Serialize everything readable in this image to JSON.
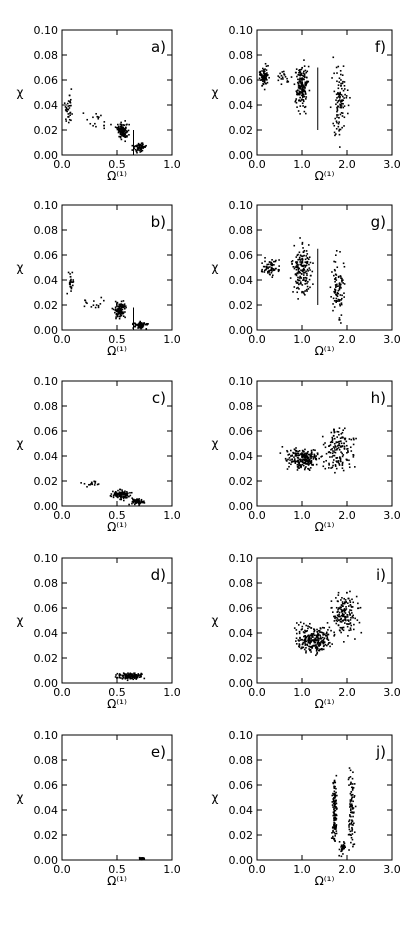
{
  "chart_data": [
    {
      "id": "a",
      "type": "scatter",
      "panel_label": "a)",
      "xlabel": "Ω⁽¹⁾",
      "ylabel": "χ",
      "xlim": [
        0,
        1
      ],
      "ylim": [
        0,
        0.1
      ],
      "x_ticks": [
        "0.0",
        "0.5",
        "1.0"
      ],
      "y_ticks": [
        "0.00",
        "0.02",
        "0.04",
        "0.06",
        "0.08",
        "0.10"
      ],
      "clusters": [
        {
          "x": [
            0.02,
            0.1
          ],
          "y": [
            0.02,
            0.055
          ],
          "n": 35
        },
        {
          "x": [
            0.48,
            0.62
          ],
          "y": [
            0.01,
            0.028
          ],
          "n": 120
        },
        {
          "x": [
            0.62,
            0.78
          ],
          "y": [
            0.0,
            0.012
          ],
          "n": 60
        },
        {
          "x": [
            0.1,
            0.55
          ],
          "y": [
            0.015,
            0.04
          ],
          "n": 18
        }
      ],
      "lines": [
        {
          "x": 0.65,
          "y": [
            0.0,
            0.02
          ]
        }
      ]
    },
    {
      "id": "b",
      "type": "scatter",
      "panel_label": "b)",
      "xlabel": "Ω⁽¹⁾",
      "ylabel": "χ",
      "xlim": [
        0,
        1
      ],
      "ylim": [
        0,
        0.1
      ],
      "x_ticks": [
        "0.0",
        "0.5",
        "1.0"
      ],
      "y_ticks": [
        "0.00",
        "0.02",
        "0.04",
        "0.06",
        "0.08",
        "0.10"
      ],
      "clusters": [
        {
          "x": [
            0.04,
            0.12
          ],
          "y": [
            0.025,
            0.05
          ],
          "n": 25
        },
        {
          "x": [
            0.45,
            0.6
          ],
          "y": [
            0.008,
            0.025
          ],
          "n": 110
        },
        {
          "x": [
            0.62,
            0.8
          ],
          "y": [
            0.0,
            0.008
          ],
          "n": 80
        },
        {
          "x": [
            0.12,
            0.45
          ],
          "y": [
            0.012,
            0.03
          ],
          "n": 15
        }
      ],
      "lines": [
        {
          "x": 0.65,
          "y": [
            0.0,
            0.018
          ]
        }
      ]
    },
    {
      "id": "c",
      "type": "scatter",
      "panel_label": "c)",
      "xlabel": "Ω⁽¹⁾",
      "ylabel": "χ",
      "xlim": [
        0,
        1
      ],
      "ylim": [
        0,
        0.1
      ],
      "x_ticks": [
        "0.0",
        "0.5",
        "1.0"
      ],
      "y_ticks": [
        "0.00",
        "0.02",
        "0.04",
        "0.06",
        "0.08",
        "0.10"
      ],
      "clusters": [
        {
          "x": [
            0.1,
            0.4
          ],
          "y": [
            0.014,
            0.022
          ],
          "n": 15
        },
        {
          "x": [
            0.42,
            0.65
          ],
          "y": [
            0.004,
            0.014
          ],
          "n": 110
        },
        {
          "x": [
            0.6,
            0.78
          ],
          "y": [
            0.0,
            0.007
          ],
          "n": 70
        }
      ],
      "lines": []
    },
    {
      "id": "d",
      "type": "scatter",
      "panel_label": "d)",
      "xlabel": "Ω⁽¹⁾",
      "ylabel": "χ",
      "xlim": [
        0,
        1
      ],
      "ylim": [
        0,
        0.1
      ],
      "x_ticks": [
        "0.0",
        "0.5",
        "1.0"
      ],
      "y_ticks": [
        "0.00",
        "0.02",
        "0.04",
        "0.06",
        "0.08",
        "0.10"
      ],
      "clusters": [
        {
          "x": [
            0.45,
            0.78
          ],
          "y": [
            0.002,
            0.009
          ],
          "n": 140
        }
      ],
      "lines": []
    },
    {
      "id": "e",
      "type": "scatter",
      "panel_label": "e)",
      "xlabel": "Ω⁽¹⁾",
      "ylabel": "χ",
      "xlim": [
        0,
        1
      ],
      "ylim": [
        0,
        0.1
      ],
      "x_ticks": [
        "0.0",
        "0.5",
        "1.0"
      ],
      "y_ticks": [
        "0.00",
        "0.02",
        "0.04",
        "0.06",
        "0.08",
        "0.10"
      ],
      "clusters": [
        {
          "x": [
            0.69,
            0.76
          ],
          "y": [
            0.0,
            0.002
          ],
          "n": 60
        }
      ],
      "lines": []
    },
    {
      "id": "f",
      "type": "scatter",
      "panel_label": "f)",
      "xlabel": "Ω⁽¹⁾",
      "ylabel": "χ",
      "xlim": [
        0,
        3
      ],
      "ylim": [
        0,
        0.1
      ],
      "x_ticks": [
        "0.0",
        "1.0",
        "2.0",
        "3.0"
      ],
      "y_ticks": [
        "0.00",
        "0.02",
        "0.04",
        "0.06",
        "0.08",
        "0.10"
      ],
      "clusters": [
        {
          "x": [
            0.0,
            0.3
          ],
          "y": [
            0.05,
            0.075
          ],
          "n": 90
        },
        {
          "x": [
            0.8,
            1.2
          ],
          "y": [
            0.03,
            0.08
          ],
          "n": 170
        },
        {
          "x": [
            1.6,
            2.1
          ],
          "y": [
            0.0,
            0.08
          ],
          "n": 110
        },
        {
          "x": [
            0.3,
            0.8
          ],
          "y": [
            0.055,
            0.07
          ],
          "n": 20
        }
      ],
      "lines": [
        {
          "x": 1.35,
          "y": [
            0.02,
            0.07
          ]
        }
      ]
    },
    {
      "id": "g",
      "type": "scatter",
      "panel_label": "g)",
      "xlabel": "Ω⁽¹⁾",
      "ylabel": "χ",
      "xlim": [
        0,
        3
      ],
      "ylim": [
        0,
        0.1
      ],
      "x_ticks": [
        "0.0",
        "1.0",
        "2.0",
        "3.0"
      ],
      "y_ticks": [
        "0.00",
        "0.02",
        "0.04",
        "0.06",
        "0.08",
        "0.10"
      ],
      "clusters": [
        {
          "x": [
            0.0,
            0.6
          ],
          "y": [
            0.04,
            0.06
          ],
          "n": 60
        },
        {
          "x": [
            0.7,
            1.3
          ],
          "y": [
            0.02,
            0.075
          ],
          "n": 170
        },
        {
          "x": [
            1.6,
            2.0
          ],
          "y": [
            0.0,
            0.07
          ],
          "n": 90
        }
      ],
      "lines": [
        {
          "x": 1.35,
          "y": [
            0.02,
            0.065
          ]
        }
      ]
    },
    {
      "id": "h",
      "type": "scatter",
      "panel_label": "h)",
      "xlabel": "Ω⁽¹⁾",
      "ylabel": "χ",
      "xlim": [
        0,
        3
      ],
      "ylim": [
        0,
        0.1
      ],
      "x_ticks": [
        "0.0",
        "1.0",
        "2.0",
        "3.0"
      ],
      "y_ticks": [
        "0.00",
        "0.02",
        "0.04",
        "0.06",
        "0.08",
        "0.10"
      ],
      "clusters": [
        {
          "x": [
            0.5,
            1.6
          ],
          "y": [
            0.025,
            0.05
          ],
          "n": 220
        },
        {
          "x": [
            1.3,
            2.3
          ],
          "y": [
            0.02,
            0.07
          ],
          "n": 150
        }
      ],
      "lines": []
    },
    {
      "id": "i",
      "type": "scatter",
      "panel_label": "i)",
      "xlabel": "Ω⁽¹⁾",
      "ylabel": "χ",
      "xlim": [
        0,
        3
      ],
      "ylim": [
        0,
        0.1
      ],
      "x_ticks": [
        "0.0",
        "1.0",
        "2.0",
        "3.0"
      ],
      "y_ticks": [
        "0.00",
        "0.02",
        "0.04",
        "0.06",
        "0.08",
        "0.10"
      ],
      "clusters": [
        {
          "x": [
            0.7,
            1.8
          ],
          "y": [
            0.02,
            0.05
          ],
          "n": 260
        },
        {
          "x": [
            1.5,
            2.4
          ],
          "y": [
            0.03,
            0.08
          ],
          "n": 160
        }
      ],
      "lines": []
    },
    {
      "id": "j",
      "type": "scatter",
      "panel_label": "j)",
      "xlabel": "Ω⁽¹⁾",
      "ylabel": "χ",
      "xlim": [
        0,
        3
      ],
      "ylim": [
        0,
        0.1
      ],
      "x_ticks": [
        "0.0",
        "1.0",
        "2.0",
        "3.0"
      ],
      "y_ticks": [
        "0.00",
        "0.02",
        "0.04",
        "0.06",
        "0.08",
        "0.10"
      ],
      "clusters": [
        {
          "x": [
            1.65,
            1.8
          ],
          "y": [
            0.0,
            0.08
          ],
          "n": 120
        },
        {
          "x": [
            2.0,
            2.2
          ],
          "y": [
            0.0,
            0.08
          ],
          "n": 90
        },
        {
          "x": [
            1.8,
            2.0
          ],
          "y": [
            0.0,
            0.02
          ],
          "n": 30
        }
      ],
      "lines": []
    }
  ]
}
